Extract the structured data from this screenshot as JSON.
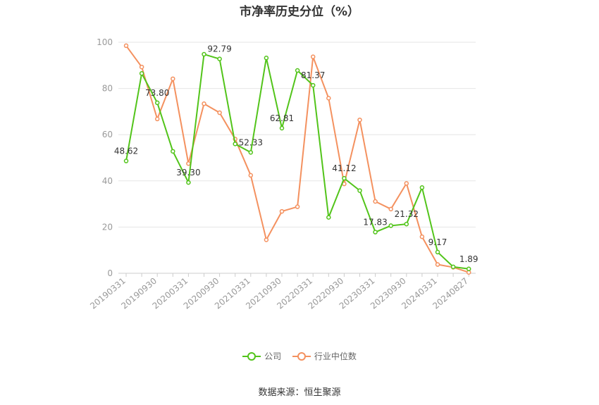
{
  "chart_data": {
    "type": "line",
    "title": "市净率历史分位（%）",
    "xlabel": "",
    "ylabel": "",
    "ylim": [
      0,
      100
    ],
    "yticks": [
      0,
      20,
      40,
      60,
      80,
      100
    ],
    "grid": true,
    "legend_position": "bottom",
    "x": [
      "20190331",
      "20190630",
      "20190930",
      "20191231",
      "20200331",
      "20200630",
      "20200930",
      "20201231",
      "20210331",
      "20210630",
      "20210930",
      "20211231",
      "20220331",
      "20220630",
      "20220930",
      "20221231",
      "20230331",
      "20230630",
      "20230930",
      "20231231",
      "20240331",
      "20240630",
      "20240827"
    ],
    "x_tick_labels": [
      "20190331",
      "20190930",
      "20200331",
      "20200930",
      "20210331",
      "20210930",
      "20220331",
      "20220930",
      "20230331",
      "20230930",
      "20240331",
      "20240827"
    ],
    "series": [
      {
        "name": "公司",
        "color": "#52c41a",
        "values": [
          48.62,
          86.5,
          73.8,
          52.8,
          39.3,
          94.8,
          92.79,
          56.0,
          52.33,
          93.2,
          62.81,
          87.8,
          81.37,
          24.2,
          41.12,
          35.8,
          17.83,
          20.6,
          21.32,
          37.1,
          9.17,
          2.8,
          1.89
        ],
        "labels": {
          "0": "48.62",
          "2": "73.80",
          "4": "39.30",
          "6": "92.79",
          "8": "52.33",
          "10": "62.81",
          "12": "81.37",
          "14": "41.12",
          "16": "17.83",
          "18": "21.32",
          "20": "9.17",
          "22": "1.89"
        }
      },
      {
        "name": "行业中位数",
        "color": "#f4915f",
        "values": [
          98.5,
          89.3,
          66.8,
          84.2,
          47.5,
          73.4,
          69.5,
          58.1,
          42.4,
          14.5,
          26.8,
          28.8,
          93.7,
          75.8,
          38.7,
          66.4,
          31.1,
          27.8,
          38.9,
          15.8,
          3.8,
          2.6,
          0.4
        ]
      }
    ]
  },
  "legend": {
    "items": [
      {
        "label": "公司",
        "color": "#52c41a"
      },
      {
        "label": "行业中位数",
        "color": "#f4915f"
      }
    ]
  },
  "source": "数据来源：恒生聚源"
}
